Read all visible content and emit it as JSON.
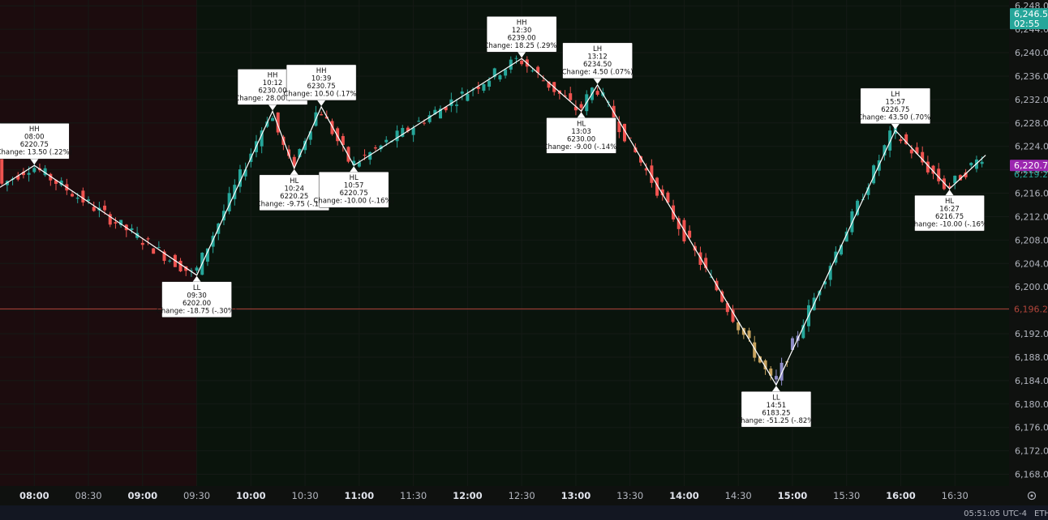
{
  "chart_data": {
    "type": "candlestick",
    "ylim": [
      6166,
      6249
    ],
    "y_ticks": [
      6168,
      6172,
      6176,
      6180,
      6184,
      6188,
      6192,
      6196,
      6200,
      6204,
      6208,
      6212,
      6216,
      6220,
      6224,
      6228,
      6232,
      6236,
      6240,
      6244,
      6248
    ],
    "y_tick_labels": [
      "6,168.00",
      "6,172.00",
      "6,176.00",
      "6,180.00",
      "6,184.00",
      "6,188.00",
      "6,192.00",
      "6,196.00",
      "6,200.00",
      "6,204.00",
      "6,208.00",
      "6,212.00",
      "6,216.00",
      "6,220.00",
      "6,224.00",
      "6,228.00",
      "6,232.00",
      "6,236.00",
      "6,240.00",
      "6,244.00",
      "6,248.00"
    ],
    "x_range": [
      "07:41",
      "17:00"
    ],
    "x_ticks": [
      {
        "time": "08:00",
        "label": "08:00",
        "major": true
      },
      {
        "time": "08:30",
        "label": "08:30",
        "major": false
      },
      {
        "time": "09:00",
        "label": "09:00",
        "major": true
      },
      {
        "time": "09:30",
        "label": "09:30",
        "major": false
      },
      {
        "time": "10:00",
        "label": "10:00",
        "major": true
      },
      {
        "time": "10:30",
        "label": "10:30",
        "major": false
      },
      {
        "time": "11:00",
        "label": "11:00",
        "major": true
      },
      {
        "time": "11:30",
        "label": "11:30",
        "major": false
      },
      {
        "time": "12:00",
        "label": "12:00",
        "major": true
      },
      {
        "time": "12:30",
        "label": "12:30",
        "major": false
      },
      {
        "time": "13:00",
        "label": "13:00",
        "major": true
      },
      {
        "time": "13:30",
        "label": "13:30",
        "major": false
      },
      {
        "time": "14:00",
        "label": "14:00",
        "major": true
      },
      {
        "time": "14:30",
        "label": "14:30",
        "major": false
      },
      {
        "time": "15:00",
        "label": "15:00",
        "major": true
      },
      {
        "time": "15:30",
        "label": "15:30",
        "major": false
      },
      {
        "time": "16:00",
        "label": "16:00",
        "major": true
      },
      {
        "time": "16:30",
        "label": "16:30",
        "major": false
      }
    ],
    "sessions": [
      {
        "from": "07:41",
        "to": "09:30",
        "tone": "red"
      },
      {
        "from": "09:30",
        "to": "17:00",
        "tone": "green"
      }
    ],
    "zigzag": [
      {
        "time": "07:41",
        "price": 6217.0
      },
      {
        "time": "08:00",
        "price": 6220.75
      },
      {
        "time": "09:30",
        "price": 6202.0
      },
      {
        "time": "10:12",
        "price": 6230.0
      },
      {
        "time": "10:24",
        "price": 6220.25
      },
      {
        "time": "10:39",
        "price": 6230.75
      },
      {
        "time": "10:57",
        "price": 6220.75
      },
      {
        "time": "12:30",
        "price": 6239.0
      },
      {
        "time": "13:03",
        "price": 6230.0
      },
      {
        "time": "13:12",
        "price": 6234.5
      },
      {
        "time": "14:51",
        "price": 6183.25
      },
      {
        "time": "15:57",
        "price": 6226.75
      },
      {
        "time": "16:27",
        "price": 6216.75
      },
      {
        "time": "16:47",
        "price": 6222.5
      }
    ],
    "pivot_labels": [
      {
        "time": "08:00",
        "price": 6220.75,
        "pos": "above",
        "lines": [
          "HH",
          "08:00",
          "6220.75",
          "Change: 13.50 (.22%)"
        ]
      },
      {
        "time": "09:30",
        "price": 6202.0,
        "pos": "below",
        "lines": [
          "LL",
          "09:30",
          "6202.00",
          "Change: -18.75 (-.30%)"
        ]
      },
      {
        "time": "10:12",
        "price": 6230.0,
        "pos": "above",
        "lines": [
          "HH",
          "10:12",
          "6230.00",
          "Change: 28.00 (.45%)"
        ]
      },
      {
        "time": "10:24",
        "price": 6220.25,
        "pos": "below",
        "lines": [
          "HL",
          "10:24",
          "6220.25",
          "Change: -9.75 (-.16%)"
        ]
      },
      {
        "time": "10:39",
        "price": 6230.75,
        "pos": "above",
        "lines": [
          "HH",
          "10:39",
          "6230.75",
          "Change: 10.50 (.17%)"
        ]
      },
      {
        "time": "10:57",
        "price": 6220.75,
        "pos": "below",
        "lines": [
          "HL",
          "10:57",
          "6220.75",
          "Change: -10.00 (-.16%)"
        ]
      },
      {
        "time": "12:30",
        "price": 6239.0,
        "pos": "above",
        "lines": [
          "HH",
          "12:30",
          "6239.00",
          "Change: 18.25 (.29%)"
        ]
      },
      {
        "time": "13:03",
        "price": 6230.0,
        "pos": "below",
        "lines": [
          "HL",
          "13:03",
          "6230.00",
          "Change: -9.00 (-.14%)"
        ]
      },
      {
        "time": "13:12",
        "price": 6234.5,
        "pos": "above",
        "lines": [
          "LH",
          "13:12",
          "6234.50",
          "Change: 4.50 (.07%)"
        ]
      },
      {
        "time": "14:51",
        "price": 6183.25,
        "pos": "below",
        "lines": [
          "LL",
          "14:51",
          "6183.25",
          "Change: -51.25 (-.82%)"
        ]
      },
      {
        "time": "15:57",
        "price": 6226.75,
        "pos": "above",
        "lines": [
          "LH",
          "15:57",
          "6226.75",
          "Change: 43.50 (.70%)"
        ]
      },
      {
        "time": "16:27",
        "price": 6216.75,
        "pos": "below",
        "lines": [
          "HL",
          "16:27",
          "6216.75",
          "Change: -10.00 (-.16%)"
        ]
      }
    ],
    "horizontal_line": {
      "price": 6196.25,
      "label": "6,196.25",
      "color": "#b2453b"
    },
    "price_tags": [
      {
        "price": 6246.5,
        "label": "6,246.50",
        "sub": "02:55",
        "color": "#26a69a"
      },
      {
        "price": 6220.75,
        "label": "6,220.75",
        "color": "#9c27b0"
      },
      {
        "price": 6219.25,
        "label": "6,219.25",
        "color": "#26a69a",
        "plain": true
      }
    ],
    "colors": {
      "up": "#26a69a",
      "down": "#ef5350",
      "zigzag": "#ffffff",
      "highlight_up": "#8e8cc7",
      "highlight_down": "#c6a25e"
    }
  },
  "status": {
    "clock": "05:51:05 UTC-4",
    "session": "ETH"
  },
  "icons": {
    "settings": "gear-icon"
  }
}
